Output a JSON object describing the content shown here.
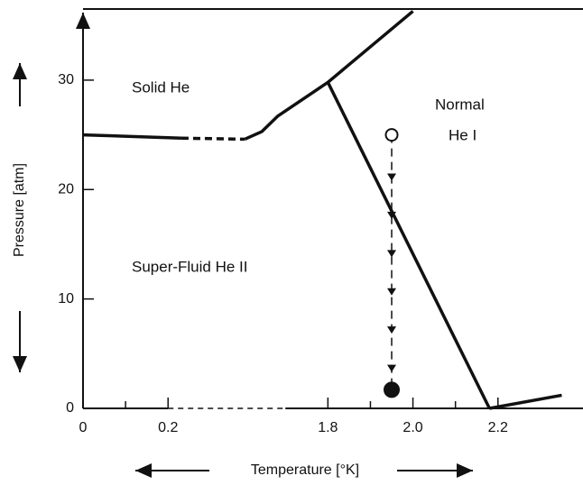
{
  "chart_data": {
    "type": "line",
    "ylabel": "Pressure [atm]",
    "xlabel": "Temperature [°K]",
    "annotations": [
      "Solid He",
      "Normal",
      "He I",
      "Super-Fluid He II"
    ],
    "xlim": [
      0,
      2.4
    ],
    "x_break": [
      0.2,
      1.7
    ],
    "ylim": [
      0,
      36.5
    ],
    "xticks": [
      0,
      0.2,
      1.8,
      {
        "value": 2,
        "label": "2.0"
      },
      2.2
    ],
    "xminor": [
      0.1,
      1.9,
      2.1
    ],
    "yticks": [
      0,
      10,
      20,
      30
    ],
    "series": [
      {
        "color": "#111111",
        "style": "solid",
        "x": [
          0,
          0.37
        ],
        "values": [
          25,
          24.7
        ]
      },
      {
        "color": "#111111",
        "style": "dashed",
        "x": [
          0.37,
          1.18
        ],
        "values": [
          24.7,
          24.6
        ]
      },
      {
        "color": "#111111",
        "style": "solid",
        "x": [
          1.18,
          1.4,
          1.6,
          1.8,
          2.0
        ],
        "values": [
          24.6,
          25.3,
          26.7,
          29.8,
          36.3
        ]
      },
      {
        "color": "#111111",
        "style": "solid",
        "x": [
          1.8,
          2.18
        ],
        "values": [
          29.8,
          0
        ]
      },
      {
        "color": "#111111",
        "style": "solid",
        "x": [
          2.18,
          2.35
        ],
        "values": [
          0,
          1.2
        ]
      },
      {
        "color": "#111111",
        "style": "dashed",
        "arrows": true,
        "markers": [
          "open",
          "filled"
        ],
        "x": [
          1.95,
          1.95
        ],
        "values": [
          25,
          1.7
        ]
      }
    ]
  }
}
